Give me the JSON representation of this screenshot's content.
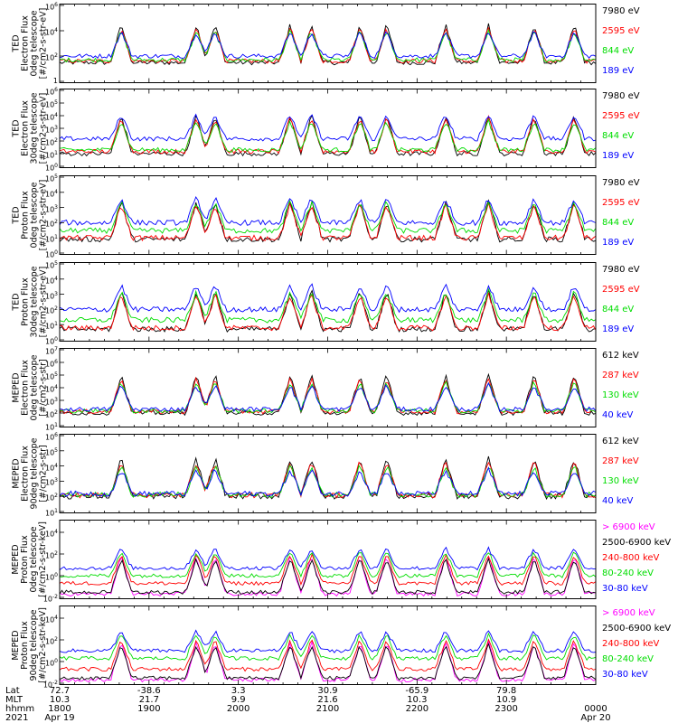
{
  "chart_data": [
    {
      "type": "line",
      "panel": "ted-electron-0deg",
      "ylabel": [
        "TED",
        "Electron Flux",
        "0deg telescope",
        "[#/cm2-s-str-eV]"
      ],
      "ylim": [
        1,
        1000000
      ],
      "yscale": "log",
      "ticks": [
        {
          "m": 1,
          "e": 0
        },
        {
          "m": 10,
          "e": 2
        },
        {
          "m": 10,
          "e": 4
        },
        {
          "m": 10,
          "e": 6
        }
      ],
      "series": [
        {
          "name": "7980 eV",
          "color": "#000000"
        },
        {
          "name": "2595 eV",
          "color": "#ff0000"
        },
        {
          "name": "844 eV",
          "color": "#00dd00"
        },
        {
          "name": "189 eV",
          "color": "#0000ff"
        }
      ],
      "baselines": [
        30,
        40,
        50,
        100
      ]
    },
    {
      "type": "line",
      "panel": "ted-electron-30deg",
      "ylabel": [
        "TED",
        "Electron Flux",
        "30deg telescope",
        "[#/cm2-s-str-eV]"
      ],
      "ylim": [
        1,
        1000000
      ],
      "yscale": "log",
      "ticks": [
        {
          "m": 10,
          "e": 0
        },
        {
          "m": 10,
          "e": 1
        },
        {
          "m": 10,
          "e": 2
        },
        {
          "m": 10,
          "e": 3
        },
        {
          "m": 10,
          "e": 4
        },
        {
          "m": 10,
          "e": 5
        },
        {
          "m": 10,
          "e": 6
        }
      ],
      "series": [
        {
          "name": "7980 eV",
          "color": "#000000"
        },
        {
          "name": "2595 eV",
          "color": "#ff0000"
        },
        {
          "name": "844 eV",
          "color": "#00dd00"
        },
        {
          "name": "189 eV",
          "color": "#0000ff"
        }
      ],
      "baselines": [
        10,
        15,
        20,
        150
      ]
    },
    {
      "type": "line",
      "panel": "ted-proton-0deg",
      "ylabel": [
        "TED",
        "Proton Flux",
        "0deg telescope",
        "[#/cm2-s-str-eV]"
      ],
      "ylim": [
        1,
        100000
      ],
      "yscale": "log",
      "ticks": [
        {
          "m": 10,
          "e": 0
        },
        {
          "m": 10,
          "e": 1
        },
        {
          "m": 10,
          "e": 2
        },
        {
          "m": 10,
          "e": 3
        },
        {
          "m": 10,
          "e": 4
        },
        {
          "m": 10,
          "e": 5
        }
      ],
      "series": [
        {
          "name": "7980 eV",
          "color": "#000000"
        },
        {
          "name": "2595 eV",
          "color": "#ff0000"
        },
        {
          "name": "844 eV",
          "color": "#00dd00"
        },
        {
          "name": "189 eV",
          "color": "#0000ff"
        }
      ],
      "baselines": [
        8,
        10,
        30,
        100
      ]
    },
    {
      "type": "line",
      "panel": "ted-proton-30deg",
      "ylabel": [
        "TED",
        "Proton Flux",
        "30deg telescope",
        "[#/cm2-s-str-eV]"
      ],
      "ylim": [
        1,
        100000
      ],
      "yscale": "log",
      "ticks": [
        {
          "m": 10,
          "e": 0
        },
        {
          "m": 10,
          "e": 1
        },
        {
          "m": 10,
          "e": 2
        },
        {
          "m": 10,
          "e": 3
        },
        {
          "m": 10,
          "e": 4
        },
        {
          "m": 10,
          "e": 5
        }
      ],
      "series": [
        {
          "name": "7980 eV",
          "color": "#000000"
        },
        {
          "name": "2595 eV",
          "color": "#ff0000"
        },
        {
          "name": "844 eV",
          "color": "#00dd00"
        },
        {
          "name": "189 eV",
          "color": "#0000ff"
        }
      ],
      "baselines": [
        5,
        6,
        20,
        100
      ]
    },
    {
      "type": "line",
      "panel": "meped-electron-0deg",
      "ylabel": [
        "MEPED",
        "Electron Flux",
        "0deg telescope",
        "[#/cm2-s-str]"
      ],
      "ylim": [
        10,
        10000000
      ],
      "yscale": "log",
      "ticks": [
        {
          "m": 10,
          "e": 1
        },
        {
          "m": 10,
          "e": 2
        },
        {
          "m": 10,
          "e": 3
        },
        {
          "m": 10,
          "e": 4
        },
        {
          "m": 10,
          "e": 5
        },
        {
          "m": 10,
          "e": 6
        },
        {
          "m": 10,
          "e": 7
        }
      ],
      "series": [
        {
          "name": "612 keV",
          "color": "#000000"
        },
        {
          "name": "287 keV",
          "color": "#ff0000"
        },
        {
          "name": "130 keV",
          "color": "#00dd00"
        },
        {
          "name": "40 keV",
          "color": "#0000ff"
        }
      ],
      "baselines": [
        100,
        130,
        150,
        200
      ]
    },
    {
      "type": "line",
      "panel": "meped-electron-90deg",
      "ylabel": [
        "MEPED",
        "Electron Flux",
        "90deg telescope",
        "[#/cm2-s-str]"
      ],
      "ylim": [
        10,
        1000000
      ],
      "yscale": "log",
      "ticks": [
        {
          "m": 10,
          "e": 1
        },
        {
          "m": 10,
          "e": 2
        },
        {
          "m": 10,
          "e": 3
        },
        {
          "m": 10,
          "e": 4
        },
        {
          "m": 10,
          "e": 5
        },
        {
          "m": 10,
          "e": 6
        }
      ],
      "series": [
        {
          "name": "612 keV",
          "color": "#000000"
        },
        {
          "name": "287 keV",
          "color": "#ff0000"
        },
        {
          "name": "130 keV",
          "color": "#00dd00"
        },
        {
          "name": "40 keV",
          "color": "#0000ff"
        }
      ],
      "baselines": [
        100,
        120,
        130,
        150
      ]
    },
    {
      "type": "line",
      "panel": "meped-proton-0deg",
      "ylabel": [
        "MEPED",
        "Proton Flux",
        "0deg telescope",
        "[#/cm2-s-str-keV]"
      ],
      "ylim": [
        0.01,
        100000
      ],
      "yscale": "log",
      "ticks": [
        {
          "m": 10,
          "e": -2
        },
        {
          "m": 10,
          "e": 0
        },
        {
          "m": 10,
          "e": 2
        },
        {
          "m": 10,
          "e": 4
        }
      ],
      "series": [
        {
          "name": "> 6900 keV",
          "color": "#ff00ff"
        },
        {
          "name": "2500-6900 keV",
          "color": "#000000"
        },
        {
          "name": "240-800 keV",
          "color": "#ff0000"
        },
        {
          "name": "80-240 keV",
          "color": "#00dd00"
        },
        {
          "name": "30-80 keV",
          "color": "#0000ff"
        }
      ],
      "baselines": [
        0.02,
        0.03,
        0.2,
        1,
        5
      ]
    },
    {
      "type": "line",
      "panel": "meped-proton-90deg",
      "ylabel": [
        "MEPED",
        "Proton Flux",
        "90deg telescope",
        "[#/cm2-s-str-keV]"
      ],
      "ylim": [
        0.01,
        100000
      ],
      "yscale": "log",
      "ticks": [
        {
          "m": 10,
          "e": -2
        },
        {
          "m": 10,
          "e": 0
        },
        {
          "m": 10,
          "e": 2
        },
        {
          "m": 10,
          "e": 4
        }
      ],
      "series": [
        {
          "name": "> 6900 keV",
          "color": "#ff00ff"
        },
        {
          "name": "2500-6900 keV",
          "color": "#000000"
        },
        {
          "name": "240-800 keV",
          "color": "#ff0000"
        },
        {
          "name": "80-240 keV",
          "color": "#00dd00"
        },
        {
          "name": "30-80 keV",
          "color": "#0000ff"
        }
      ],
      "baselines": [
        0.02,
        0.03,
        0.2,
        2,
        10
      ]
    }
  ],
  "x_axis": {
    "row_labels": [
      "Lat",
      "MLT",
      "hhmm",
      "2021"
    ],
    "ticks": [
      {
        "Lat": "72.7",
        "MLT": "10.3",
        "hhmm": "1800",
        "date": "Apr 19"
      },
      {
        "Lat": "-38.6",
        "MLT": "21.7",
        "hhmm": "1900",
        "date": ""
      },
      {
        "Lat": "3.3",
        "MLT": "9.9",
        "hhmm": "2000",
        "date": ""
      },
      {
        "Lat": "30.9",
        "MLT": "21.6",
        "hhmm": "2100",
        "date": ""
      },
      {
        "Lat": "-65.9",
        "MLT": "10.3",
        "hhmm": "2200",
        "date": ""
      },
      {
        "Lat": "79.8",
        "MLT": "10.9",
        "hhmm": "2300",
        "date": ""
      },
      {
        "Lat": "",
        "MLT": "",
        "hhmm": "0000",
        "date": "Apr 20"
      }
    ]
  },
  "colors": {
    "black": "#000000",
    "red": "#ff0000",
    "green": "#00dd00",
    "blue": "#0000ff",
    "magenta": "#ff00ff"
  }
}
